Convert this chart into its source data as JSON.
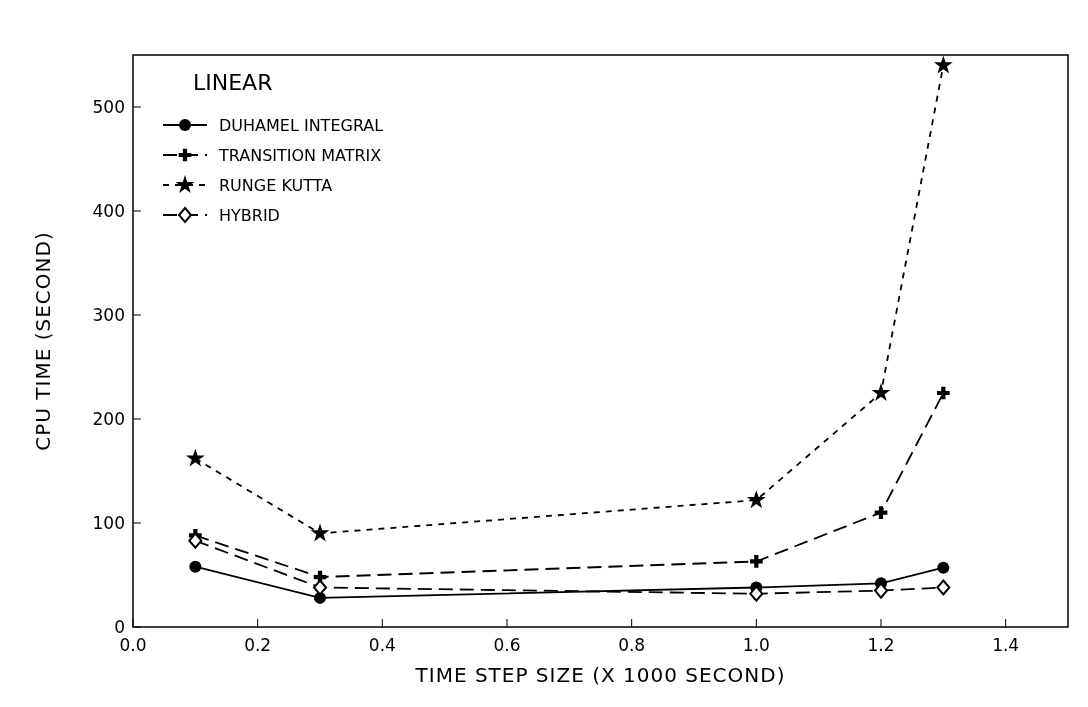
{
  "chart_data": {
    "type": "line",
    "xlabel": "TIME STEP SIZE (X 1000 SECOND)",
    "ylabel": "CPU TIME (SECOND)",
    "legend_title": "LINEAR",
    "legend": "top left",
    "grid": false,
    "xlim": [
      0,
      1.5
    ],
    "ylim": [
      0,
      550
    ],
    "xticks": [
      {
        "value": 0,
        "label": "0.0"
      },
      {
        "value": 0.2,
        "label": "0.2"
      },
      {
        "value": 0.4,
        "label": "0.4"
      },
      {
        "value": 0.6,
        "label": "0.6"
      },
      {
        "value": 0.8,
        "label": "0.8"
      },
      {
        "value": 1,
        "label": "1.0"
      },
      {
        "value": 1.2,
        "label": "1.2"
      },
      {
        "value": 1.4,
        "label": "1.4"
      }
    ],
    "yticks": [
      0,
      100,
      200,
      300,
      400,
      500
    ],
    "x": [
      0.1,
      0.3,
      1.0,
      1.2,
      1.3
    ],
    "series": [
      {
        "name": "DUHAMEL INTEGRAL",
        "color": "#000000",
        "values": [
          58,
          28,
          38,
          42,
          57
        ],
        "marker": "circle",
        "line_style": "solid"
      },
      {
        "name": "TRANSITION MATRIX",
        "color": "#000000",
        "values": [
          88,
          48,
          63,
          110,
          225
        ],
        "marker": "cross",
        "line_style": "dashed"
      },
      {
        "name": "RUNGE KUTTA",
        "color": "#000000",
        "values": [
          162,
          90,
          122,
          225,
          540
        ],
        "marker": "star",
        "line_style": "dotted"
      },
      {
        "name": "HYBRID",
        "color": "#000000",
        "values": [
          83,
          38,
          32,
          35,
          38
        ],
        "marker": "diamond",
        "line_style": "dashed"
      }
    ]
  }
}
